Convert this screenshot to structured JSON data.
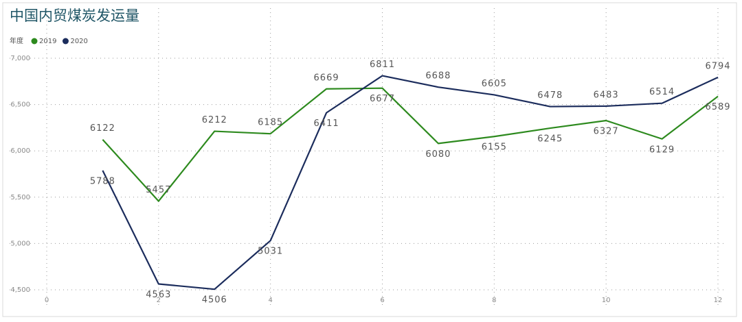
{
  "chart_data": {
    "type": "line",
    "title": "中国内贸煤炭发运量",
    "legend_title": "年度",
    "x": [
      1,
      2,
      3,
      4,
      5,
      6,
      7,
      8,
      9,
      10,
      11,
      12
    ],
    "series": [
      {
        "name": "2019",
        "color": "#2d8a1e",
        "values": [
          6122,
          5457,
          6212,
          6185,
          6669,
          6677,
          6080,
          6155,
          6245,
          6327,
          6129,
          6589
        ]
      },
      {
        "name": "2020",
        "color": "#1b2c5c",
        "values": [
          5788,
          4563,
          4506,
          5031,
          6411,
          6811,
          6688,
          6605,
          6478,
          6483,
          6514,
          6794
        ]
      }
    ],
    "xlim": [
      0,
      12
    ],
    "xticks": [
      0,
      2,
      4,
      6,
      8,
      10,
      12
    ],
    "ylim": [
      4500,
      7000
    ],
    "yticks": [
      {
        "value": 4500,
        "label": "4,500"
      },
      {
        "value": 5000,
        "label": "5,000"
      },
      {
        "value": 5500,
        "label": "5,500"
      },
      {
        "value": 6000,
        "label": "6,000"
      },
      {
        "value": 6500,
        "label": "6,500"
      },
      {
        "value": 7000,
        "label": "7,000"
      }
    ],
    "grid": true
  }
}
